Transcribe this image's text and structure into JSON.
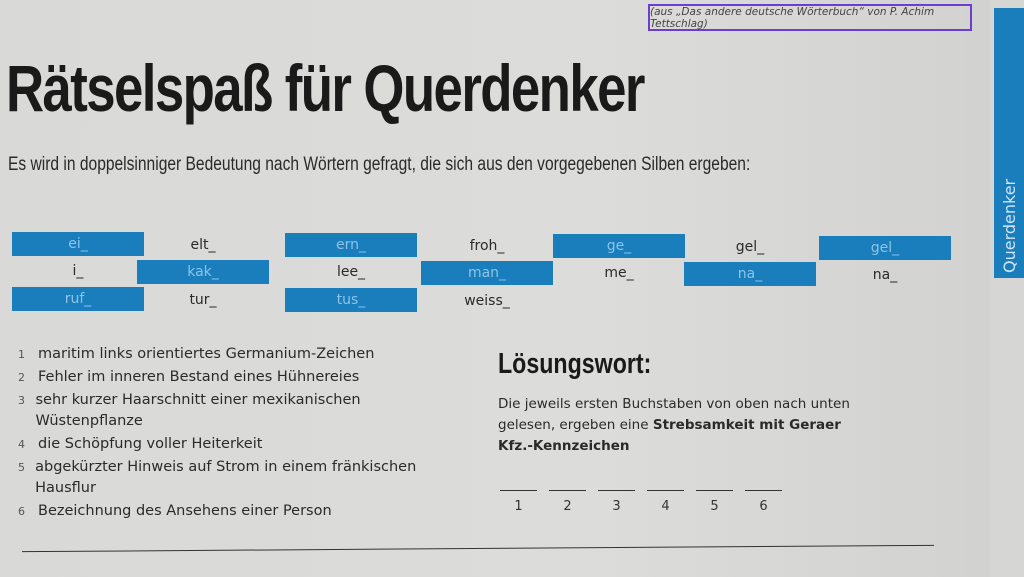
{
  "source_note": "(aus „Das andere deutsche Wörterbuch“ von P. Achim Tettschlag)",
  "side_tab": "Querdenker",
  "title": "Rätselspaß für Querdenker",
  "intro": "Es wird in doppelsinniger Bedeutung nach Wörtern gefragt, die sich aus den vorgegebenen Silben ergeben:",
  "accent_color": "#1a7ebd",
  "syllables": [
    [
      {
        "t": "ei_",
        "blue": true
      },
      {
        "t": "elt_",
        "blue": false
      },
      {
        "t": "ern_",
        "blue": true
      },
      {
        "t": "froh_",
        "blue": false
      },
      {
        "t": "ge_",
        "blue": true
      },
      {
        "t": "gel_",
        "blue": false
      },
      {
        "t": "gel_",
        "blue": true
      }
    ],
    [
      {
        "t": "i_",
        "blue": false
      },
      {
        "t": "kak_",
        "blue": true
      },
      {
        "t": "lee_",
        "blue": false
      },
      {
        "t": "man_",
        "blue": true
      },
      {
        "t": "me_",
        "blue": false
      },
      {
        "t": "na_",
        "blue": true
      },
      {
        "t": "na_",
        "blue": false
      }
    ],
    [
      {
        "t": "ruf_",
        "blue": true
      },
      {
        "t": "tur_",
        "blue": false
      },
      {
        "t": "tus_",
        "blue": true
      },
      {
        "t": "weiss_",
        "blue": false
      }
    ]
  ],
  "clues": [
    {
      "n": "1",
      "text": "maritim links orientiertes Germanium-Zeichen"
    },
    {
      "n": "2",
      "text": "Fehler im inneren Bestand eines Hühnereies"
    },
    {
      "n": "3",
      "text": "sehr kurzer Haarschnitt einer mexikanischen Wüstenpflanze"
    },
    {
      "n": "4",
      "text": "die Schöpfung voller Heiterkeit"
    },
    {
      "n": "5",
      "text": "abgekürzter Hinweis auf Strom in einem fränkischen Hausflur"
    },
    {
      "n": "6",
      "text": "Bezeichnung des Ansehens einer Person"
    }
  ],
  "solution": {
    "title": "Lösungswort:",
    "text_plain": "Die jeweils ersten Buchstaben von oben nach unten gelesen, ergeben eine ",
    "text_bold": "Strebsamkeit mit Geraer Kfz.-Kennzeichen",
    "slots": [
      "1",
      "2",
      "3",
      "4",
      "5",
      "6"
    ]
  }
}
